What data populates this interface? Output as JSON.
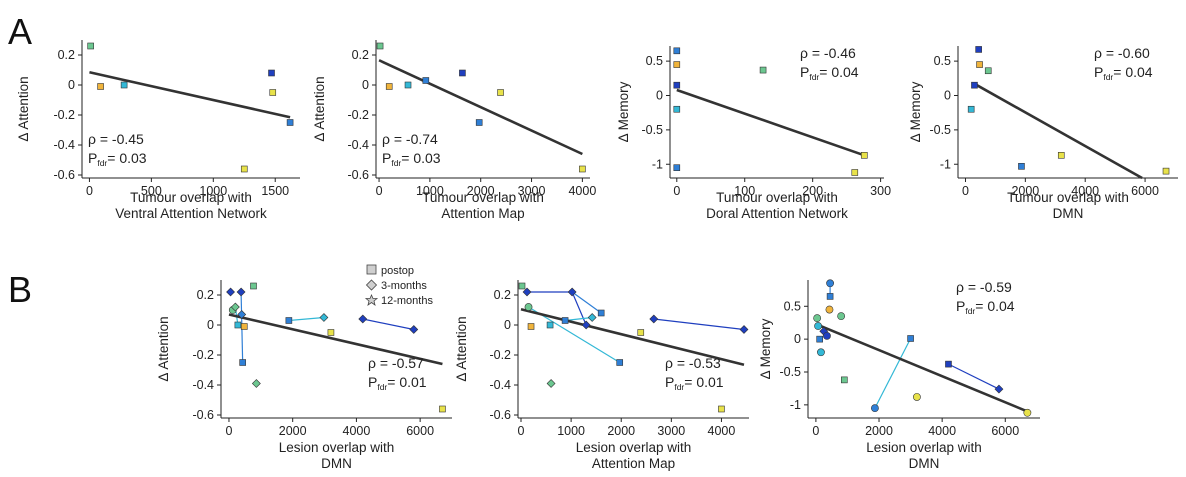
{
  "panels": [
    {
      "label": "A"
    },
    {
      "label": "B"
    }
  ],
  "legend": {
    "items": [
      {
        "label": "postop",
        "marker": "square"
      },
      {
        "label": "3-months",
        "marker": "diamond"
      },
      {
        "label": "12-months",
        "marker": "hexagram"
      }
    ]
  },
  "colors": {
    "dark_blue": "#1f3fbf",
    "mid_blue": "#2f7fd6",
    "cyan": "#33b8d6",
    "green": "#6cc790",
    "yellow": "#e8e24a",
    "orange": "#f0b43c",
    "fit_line": "#333333"
  },
  "chart_data": [
    {
      "type": "scatter",
      "panel": "A",
      "title": "",
      "ylabel": "Δ Attention",
      "xlabel_lines": [
        "Tumour overlap with",
        "Ventral Attention Network"
      ],
      "xlim": [
        -60,
        1700
      ],
      "ylim": [
        -0.62,
        0.3
      ],
      "xticks": [
        0,
        500,
        1000,
        1500
      ],
      "yticks": [
        0.2,
        0,
        -0.2,
        -0.4,
        -0.6
      ],
      "points": [
        {
          "x": 10,
          "y": 0.26,
          "color": "green"
        },
        {
          "x": 90,
          "y": -0.01,
          "color": "orange"
        },
        {
          "x": 280,
          "y": 0.0,
          "color": "cyan"
        },
        {
          "x": 1470,
          "y": 0.08,
          "color": "dark_blue"
        },
        {
          "x": 1620,
          "y": -0.25,
          "color": "mid_blue"
        },
        {
          "x": 1480,
          "y": -0.05,
          "color": "yellow"
        },
        {
          "x": 1250,
          "y": -0.56,
          "color": "yellow"
        }
      ],
      "fit": [
        [
          0,
          0.085
        ],
        [
          1620,
          -0.215
        ]
      ],
      "annotation": {
        "rho": "ρ = -0.45",
        "p": "= 0.03",
        "pos": "bottom-left"
      }
    },
    {
      "type": "scatter",
      "panel": "A",
      "title": "",
      "ylabel": "Δ Attention",
      "xlabel_lines": [
        "Tumour overlap with",
        "Attention Map"
      ],
      "xlim": [
        -60,
        4150
      ],
      "ylim": [
        -0.62,
        0.3
      ],
      "xticks": [
        0,
        1000,
        2000,
        3000,
        4000
      ],
      "yticks": [
        0.2,
        0,
        -0.2,
        -0.4,
        -0.6
      ],
      "points": [
        {
          "x": 20,
          "y": 0.26,
          "color": "green"
        },
        {
          "x": 200,
          "y": -0.01,
          "color": "orange"
        },
        {
          "x": 570,
          "y": 0.0,
          "color": "cyan"
        },
        {
          "x": 920,
          "y": 0.03,
          "color": "mid_blue"
        },
        {
          "x": 1640,
          "y": 0.08,
          "color": "dark_blue"
        },
        {
          "x": 1970,
          "y": -0.25,
          "color": "mid_blue"
        },
        {
          "x": 2390,
          "y": -0.05,
          "color": "yellow"
        },
        {
          "x": 4000,
          "y": -0.56,
          "color": "yellow"
        }
      ],
      "fit": [
        [
          0,
          0.165
        ],
        [
          4000,
          -0.46
        ]
      ],
      "annotation": {
        "rho": "ρ = -0.74",
        "p": "= 0.03",
        "pos": "bottom-left"
      }
    },
    {
      "type": "scatter",
      "panel": "A",
      "title": "",
      "ylabel": "Δ Memory",
      "xlabel_lines": [
        "Tumour overlap with",
        "Doral Attention Network"
      ],
      "xlim": [
        -10,
        305
      ],
      "ylim": [
        -1.2,
        0.72
      ],
      "xticks": [
        0,
        100,
        200,
        300
      ],
      "yticks": [
        0.5,
        0,
        -0.5,
        -1
      ],
      "points": [
        {
          "x": 0,
          "y": 0.65,
          "color": "mid_blue"
        },
        {
          "x": 0,
          "y": 0.45,
          "color": "orange"
        },
        {
          "x": 0,
          "y": 0.15,
          "color": "dark_blue"
        },
        {
          "x": 0,
          "y": -0.2,
          "color": "cyan"
        },
        {
          "x": 0,
          "y": -1.05,
          "color": "mid_blue"
        },
        {
          "x": 127,
          "y": 0.37,
          "color": "green"
        },
        {
          "x": 262,
          "y": -1.12,
          "color": "yellow"
        },
        {
          "x": 276,
          "y": -0.87,
          "color": "yellow"
        }
      ],
      "fit": [
        [
          0,
          0.08
        ],
        [
          276,
          -0.87
        ]
      ],
      "annotation": {
        "rho": "ρ = -0.46",
        "p": "= 0.04",
        "pos": "top-right"
      }
    },
    {
      "type": "scatter",
      "panel": "A",
      "title": "",
      "ylabel": "Δ Memory",
      "xlabel_lines": [
        "Tumour overlap with",
        "DMN"
      ],
      "xlim": [
        -250,
        7100
      ],
      "ylim": [
        -1.2,
        0.72
      ],
      "xticks": [
        0,
        2000,
        4000,
        6000
      ],
      "yticks": [
        0.5,
        0,
        -0.5,
        -1
      ],
      "points": [
        {
          "x": 440,
          "y": 0.67,
          "color": "dark_blue"
        },
        {
          "x": 470,
          "y": 0.45,
          "color": "orange"
        },
        {
          "x": 760,
          "y": 0.36,
          "color": "green"
        },
        {
          "x": 300,
          "y": 0.15,
          "color": "dark_blue"
        },
        {
          "x": 190,
          "y": -0.2,
          "color": "cyan"
        },
        {
          "x": 1870,
          "y": -1.03,
          "color": "mid_blue"
        },
        {
          "x": 3200,
          "y": -0.87,
          "color": "yellow"
        },
        {
          "x": 6700,
          "y": -1.1,
          "color": "yellow"
        }
      ],
      "fit": [
        [
          300,
          0.17
        ],
        [
          5900,
          -1.2
        ]
      ],
      "annotation": {
        "rho": "ρ = -0.60",
        "p": "= 0.04",
        "pos": "top-right"
      }
    },
    {
      "type": "scatter",
      "panel": "B",
      "title": "",
      "ylabel": "Δ Attention",
      "xlabel_lines": [
        "Lesion overlap with",
        "DMN"
      ],
      "xlim": [
        -250,
        7000
      ],
      "ylim": [
        -0.62,
        0.3
      ],
      "xticks": [
        0,
        2000,
        4000,
        6000
      ],
      "yticks": [
        0.2,
        0,
        -0.2,
        -0.4,
        -0.6
      ],
      "points": [
        {
          "x": 50,
          "y": 0.22,
          "color": "dark_blue",
          "marker": "diamond"
        },
        {
          "x": 380,
          "y": 0.22,
          "color": "dark_blue",
          "marker": "diamond"
        },
        {
          "x": 770,
          "y": 0.26,
          "color": "green",
          "marker": "square"
        },
        {
          "x": 120,
          "y": 0.1,
          "color": "green",
          "marker": "hexagram"
        },
        {
          "x": 200,
          "y": 0.12,
          "color": "green",
          "marker": "diamond"
        },
        {
          "x": 280,
          "y": 0.0,
          "color": "cyan",
          "marker": "square"
        },
        {
          "x": 400,
          "y": 0.07,
          "color": "mid_blue",
          "marker": "diamond"
        },
        {
          "x": 430,
          "y": -0.25,
          "color": "mid_blue",
          "marker": "square"
        },
        {
          "x": 480,
          "y": -0.01,
          "color": "orange",
          "marker": "square"
        },
        {
          "x": 860,
          "y": -0.39,
          "color": "green",
          "marker": "diamond"
        },
        {
          "x": 1880,
          "y": 0.03,
          "color": "mid_blue",
          "marker": "square"
        },
        {
          "x": 2980,
          "y": 0.05,
          "color": "cyan",
          "marker": "diamond"
        },
        {
          "x": 3200,
          "y": -0.05,
          "color": "yellow",
          "marker": "square"
        },
        {
          "x": 4200,
          "y": 0.04,
          "color": "dark_blue",
          "marker": "diamond"
        },
        {
          "x": 5800,
          "y": -0.03,
          "color": "dark_blue",
          "marker": "diamond"
        },
        {
          "x": 6700,
          "y": -0.56,
          "color": "yellow",
          "marker": "square"
        }
      ],
      "segments": [
        [
          [
            380,
            0.22
          ],
          [
            430,
            -0.25
          ],
          "mid_blue"
        ],
        [
          [
            200,
            0.12
          ],
          [
            280,
            0.0
          ],
          "cyan"
        ],
        [
          [
            1880,
            0.03
          ],
          [
            2980,
            0.05
          ],
          "cyan"
        ],
        [
          [
            4200,
            0.04
          ],
          [
            5800,
            -0.03
          ],
          "dark_blue"
        ]
      ],
      "fit": [
        [
          0,
          0.07
        ],
        [
          6700,
          -0.26
        ]
      ],
      "annotation": {
        "rho": "ρ = -0.57",
        "p": "= 0.01",
        "pos": "bottom-right"
      }
    },
    {
      "type": "scatter",
      "panel": "B",
      "title": "",
      "ylabel": "Δ Attention",
      "xlabel_lines": [
        "Lesion overlap with",
        "Attention Map"
      ],
      "xlim": [
        -60,
        4550
      ],
      "ylim": [
        -0.62,
        0.3
      ],
      "xticks": [
        0,
        1000,
        2000,
        3000,
        4000
      ],
      "yticks": [
        0.2,
        0,
        -0.2,
        -0.4,
        -0.6
      ],
      "points": [
        {
          "x": 20,
          "y": 0.26,
          "color": "green",
          "marker": "square"
        },
        {
          "x": 150,
          "y": 0.12,
          "color": "green",
          "marker": "hexagram"
        },
        {
          "x": 120,
          "y": 0.22,
          "color": "dark_blue",
          "marker": "diamond"
        },
        {
          "x": 1020,
          "y": 0.22,
          "color": "dark_blue",
          "marker": "diamond"
        },
        {
          "x": 200,
          "y": -0.01,
          "color": "orange",
          "marker": "square"
        },
        {
          "x": 580,
          "y": 0.0,
          "color": "cyan",
          "marker": "square"
        },
        {
          "x": 880,
          "y": 0.03,
          "color": "mid_blue",
          "marker": "square"
        },
        {
          "x": 1300,
          "y": 0.0,
          "color": "dark_blue",
          "marker": "diamond"
        },
        {
          "x": 1420,
          "y": 0.05,
          "color": "cyan",
          "marker": "diamond"
        },
        {
          "x": 1600,
          "y": 0.08,
          "color": "mid_blue",
          "marker": "square"
        },
        {
          "x": 1970,
          "y": -0.25,
          "color": "mid_blue",
          "marker": "square"
        },
        {
          "x": 2390,
          "y": -0.05,
          "color": "yellow",
          "marker": "square"
        },
        {
          "x": 2650,
          "y": 0.04,
          "color": "dark_blue",
          "marker": "diamond"
        },
        {
          "x": 4450,
          "y": -0.03,
          "color": "dark_blue",
          "marker": "diamond"
        },
        {
          "x": 600,
          "y": -0.39,
          "color": "green",
          "marker": "diamond"
        },
        {
          "x": 4000,
          "y": -0.56,
          "color": "yellow",
          "marker": "square"
        }
      ],
      "segments": [
        [
          [
            150,
            0.12
          ],
          [
            1970,
            -0.25
          ],
          "cyan"
        ],
        [
          [
            1020,
            0.22
          ],
          [
            1300,
            0.0
          ],
          "dark_blue"
        ],
        [
          [
            1020,
            0.22
          ],
          [
            1600,
            0.08
          ],
          "mid_blue"
        ],
        [
          [
            120,
            0.22
          ],
          [
            1020,
            0.22
          ],
          "dark_blue"
        ],
        [
          [
            880,
            0.03
          ],
          [
            1420,
            0.05
          ],
          "cyan"
        ],
        [
          [
            2650,
            0.04
          ],
          [
            4450,
            -0.03
          ],
          "dark_blue"
        ]
      ],
      "fit": [
        [
          0,
          0.105
        ],
        [
          4450,
          -0.265
        ]
      ],
      "annotation": {
        "rho": "ρ = -0.53",
        "p": "= 0.01",
        "pos": "bottom-right"
      }
    },
    {
      "type": "scatter",
      "panel": "B",
      "title": "",
      "ylabel": "Δ Memory",
      "xlabel_lines": [
        "Lesion overlap with",
        "DMN"
      ],
      "xlim": [
        -250,
        7100
      ],
      "ylim": [
        -1.2,
        0.9
      ],
      "xticks": [
        0,
        2000,
        4000,
        6000
      ],
      "yticks": [
        0.5,
        0,
        -0.5,
        -1
      ],
      "points": [
        {
          "x": 450,
          "y": 0.85,
          "color": "mid_blue",
          "marker": "hexagram"
        },
        {
          "x": 450,
          "y": 0.65,
          "color": "mid_blue",
          "marker": "square"
        },
        {
          "x": 430,
          "y": 0.45,
          "color": "orange",
          "marker": "hexagram"
        },
        {
          "x": 800,
          "y": 0.35,
          "color": "green",
          "marker": "hexagram"
        },
        {
          "x": 40,
          "y": 0.32,
          "color": "green",
          "marker": "hexagram"
        },
        {
          "x": 70,
          "y": 0.2,
          "color": "cyan",
          "marker": "hexagram"
        },
        {
          "x": 250,
          "y": 0.12,
          "color": "dark_blue",
          "marker": "diamond"
        },
        {
          "x": 350,
          "y": 0.05,
          "color": "dark_blue",
          "marker": "hexagram"
        },
        {
          "x": 120,
          "y": 0.0,
          "color": "mid_blue",
          "marker": "square"
        },
        {
          "x": 160,
          "y": -0.2,
          "color": "cyan",
          "marker": "hexagram"
        },
        {
          "x": 900,
          "y": -0.62,
          "color": "green",
          "marker": "square"
        },
        {
          "x": 1870,
          "y": -1.05,
          "color": "mid_blue",
          "marker": "hexagram"
        },
        {
          "x": 3000,
          "y": 0.01,
          "color": "mid_blue",
          "marker": "square"
        },
        {
          "x": 3200,
          "y": -0.88,
          "color": "yellow",
          "marker": "hexagram"
        },
        {
          "x": 4200,
          "y": -0.38,
          "color": "dark_blue",
          "marker": "square"
        },
        {
          "x": 5800,
          "y": -0.76,
          "color": "dark_blue",
          "marker": "diamond"
        },
        {
          "x": 6700,
          "y": -1.12,
          "color": "yellow",
          "marker": "hexagram"
        }
      ],
      "segments": [
        [
          [
            450,
            0.85
          ],
          [
            450,
            0.65
          ],
          "mid_blue"
        ],
        [
          [
            1870,
            -1.05
          ],
          [
            3000,
            0.01
          ],
          "cyan"
        ],
        [
          [
            4200,
            -0.38
          ],
          [
            5800,
            -0.76
          ],
          "dark_blue"
        ],
        [
          [
            250,
            0.12
          ],
          [
            350,
            0.05
          ],
          "dark_blue"
        ]
      ],
      "fit": [
        [
          0,
          0.23
        ],
        [
          6700,
          -1.1
        ]
      ],
      "annotation": {
        "rho": "ρ = -0.59",
        "p": "= 0.04",
        "pos": "top-right"
      }
    }
  ],
  "p_subscript": "fdr",
  "p_prefix": "P"
}
